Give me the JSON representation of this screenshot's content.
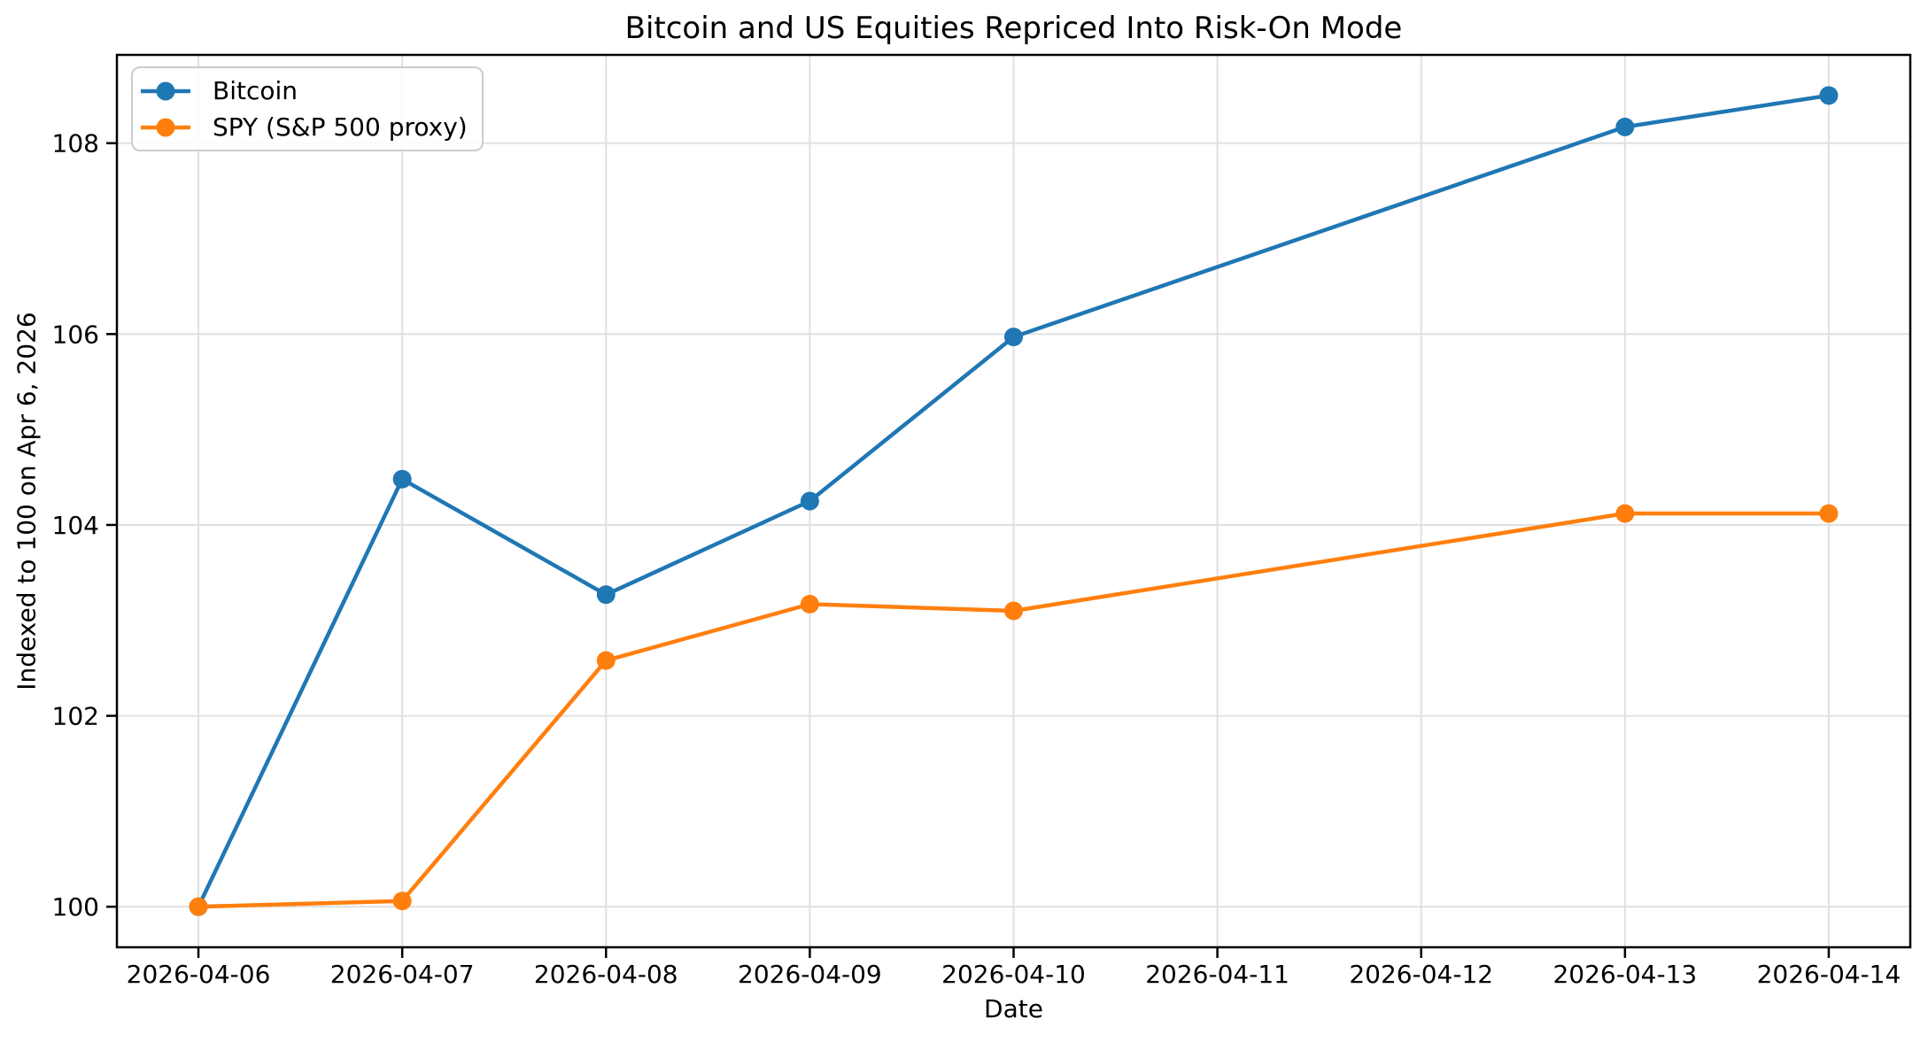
{
  "chart_data": {
    "type": "line",
    "title": "Bitcoin and US Equities Repriced Into Risk-On Mode",
    "xlabel": "Date",
    "ylabel": "Indexed to 100 on Apr 6, 2026",
    "grid": true,
    "legend_position": "upper left",
    "axes": {
      "x_tick_labels": [
        "2026-04-06",
        "2026-04-07",
        "2026-04-08",
        "2026-04-09",
        "2026-04-10",
        "2026-04-11",
        "2026-04-12",
        "2026-04-13",
        "2026-04-14"
      ],
      "x_tick_index": [
        0,
        1,
        2,
        3,
        4,
        5,
        6,
        7,
        8
      ],
      "y_ticks": [
        100,
        102,
        104,
        106,
        108
      ],
      "ylim": [
        99.575,
        108.925
      ],
      "xlim_index": [
        -0.4,
        8.4
      ]
    },
    "series": [
      {
        "name": "Bitcoin",
        "color": "#1f77b4",
        "marker": "circle",
        "x": [
          "2026-04-06",
          "2026-04-07",
          "2026-04-08",
          "2026-04-09",
          "2026-04-10",
          "2026-04-13",
          "2026-04-14"
        ],
        "x_index": [
          0,
          1,
          2,
          3,
          4,
          7,
          8
        ],
        "values": [
          100.0,
          104.48,
          103.27,
          104.25,
          105.97,
          108.17,
          108.5
        ]
      },
      {
        "name": "SPY (S&P 500 proxy)",
        "color": "#ff7f0e",
        "marker": "circle",
        "x": [
          "2026-04-06",
          "2026-04-07",
          "2026-04-08",
          "2026-04-09",
          "2026-04-10",
          "2026-04-13",
          "2026-04-14"
        ],
        "x_index": [
          0,
          1,
          2,
          3,
          4,
          7,
          8
        ],
        "values": [
          100.0,
          100.06,
          102.58,
          103.17,
          103.1,
          104.12,
          104.12
        ]
      }
    ]
  }
}
